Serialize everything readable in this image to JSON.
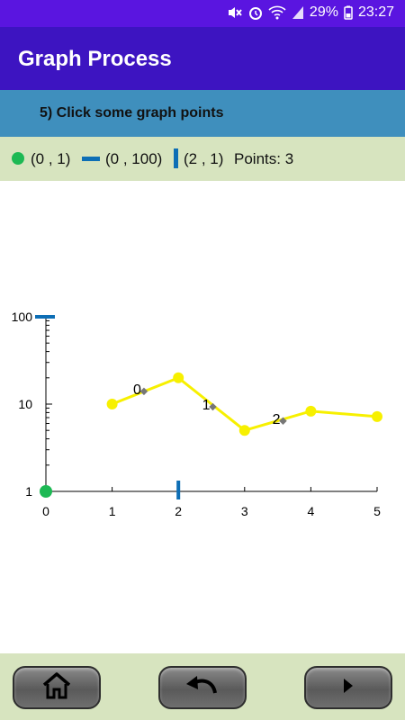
{
  "status_bar": {
    "battery": "29%",
    "time": "23:27"
  },
  "app_bar": {
    "title": "Graph Process"
  },
  "instruction": {
    "text": "5) Click some graph points"
  },
  "info": {
    "green_point": "(0 , 1)",
    "blue_horizontal": "(0 , 100)",
    "blue_vertical": "(2 , 1)",
    "points_count": "Points: 3"
  },
  "colors": {
    "green_marker": "#1db954",
    "blue_marker": "#0d6eb5",
    "series_line": "#f7f000",
    "point_marker": "#777777"
  },
  "icons": {
    "home": "home-icon",
    "undo": "undo-icon",
    "next": "play-right-icon"
  },
  "chart_data": {
    "type": "line",
    "y_scale": "log",
    "xlim": [
      0,
      5
    ],
    "ylim": [
      1,
      100
    ],
    "x_tick_labels": [
      "0",
      "1",
      "2",
      "3",
      "4",
      "5"
    ],
    "y_tick_labels": [
      "1",
      "10",
      "100"
    ],
    "series": [
      {
        "x": [
          1,
          2,
          3,
          4,
          5
        ],
        "y": [
          10,
          20,
          5,
          8.3,
          7.2
        ]
      }
    ],
    "clicked_points": [
      {
        "label": "0",
        "x": 1.48,
        "y": 14
      },
      {
        "label": "1",
        "x": 2.52,
        "y": 9.3
      },
      {
        "label": "2",
        "x": 3.58,
        "y": 6.4
      }
    ],
    "markers": {
      "green_point": {
        "x": 0,
        "y": 1
      },
      "blue_horizontal": {
        "x": 0,
        "y": 100
      },
      "blue_vertical": {
        "x": 2,
        "y": 1
      }
    }
  }
}
